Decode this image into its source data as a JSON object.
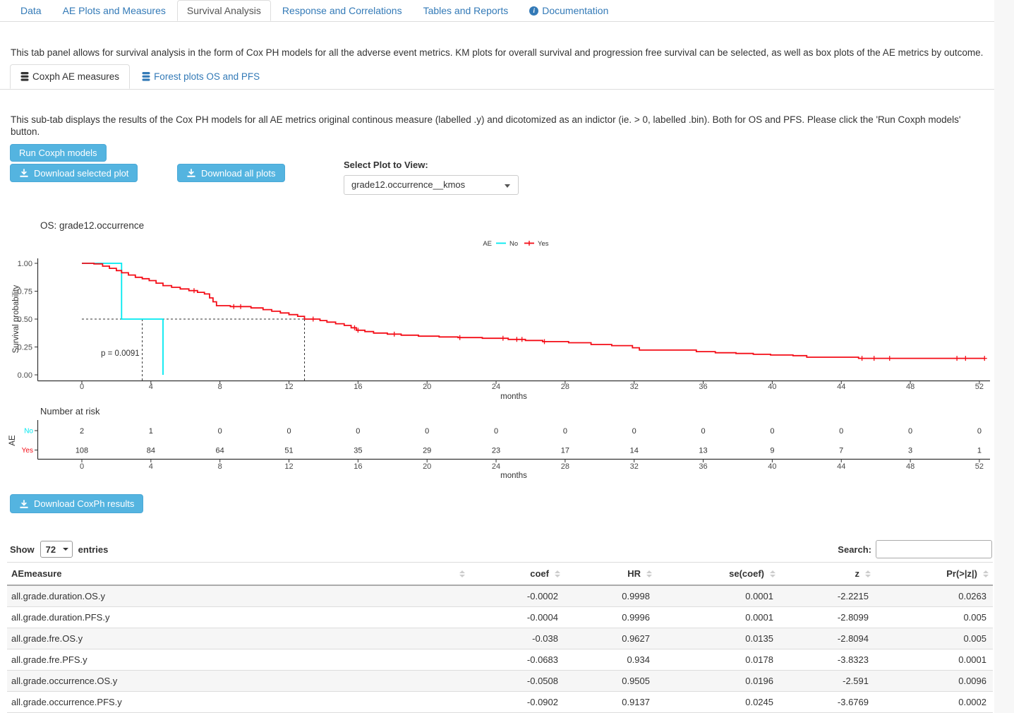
{
  "nav_tabs": {
    "items": [
      {
        "label": "Data",
        "active": false
      },
      {
        "label": "AE Plots and Measures",
        "active": false
      },
      {
        "label": "Survival Analysis",
        "active": true
      },
      {
        "label": "Response and Correlations",
        "active": false
      },
      {
        "label": "Tables and Reports",
        "active": false
      },
      {
        "label": "Documentation",
        "active": false,
        "icon": "info-circle-icon"
      }
    ]
  },
  "intro_text": "This tab panel allows for survival analysis in the form of Cox PH models for all the adverse event metrics. KM plots for overall survival and progression free survival can be selected, as well as box plots of the AE metrics by outcome.",
  "sub_tabs": {
    "items": [
      {
        "label": "Coxph AE measures",
        "active": true,
        "icon": "database-icon"
      },
      {
        "label": "Forest plots OS and PFS",
        "active": false,
        "icon": "database-icon"
      }
    ]
  },
  "subtab_text": "This sub-tab displays the results of the Cox PH models for all AE metrics original continous measure (labelled .y) and dicotomized as an indictor (ie. > 0, labelled .bin). Both for OS and PFS. Please click the 'Run Coxph models' button.",
  "buttons": {
    "run": "Run Coxph models",
    "download_selected": "Download selected plot",
    "download_all": "Download all plots",
    "download_results": "Download CoxPh results",
    "accent_color": "#54b4e0"
  },
  "plot_select": {
    "label": "Select Plot to View:",
    "value": "grade12.occurrence__kmos"
  },
  "chart_data": {
    "type": "line",
    "subtype": "kaplan-meier-step",
    "title": "OS:  grade12.occurrence",
    "xlabel": "months",
    "ylabel": "Survival probability",
    "xlim": [
      0,
      52
    ],
    "ylim": [
      0,
      1
    ],
    "xticks": [
      0,
      4,
      8,
      12,
      16,
      20,
      24,
      28,
      32,
      36,
      40,
      44,
      48,
      52
    ],
    "ytick_labels": [
      "0.00",
      "0.25",
      "0.50",
      "0.75",
      "1.00"
    ],
    "yticks": [
      0,
      0.25,
      0.5,
      0.75,
      1
    ],
    "grid": false,
    "legend": {
      "title": "AE",
      "position": "top-center",
      "entries": [
        {
          "label": "No",
          "color": "#00E9F0"
        },
        {
          "label": "Yes",
          "color": "#F40D17"
        }
      ]
    },
    "annotation": "p = 0.0091",
    "median_guides": {
      "survival_level": 0.5,
      "h_line_to_month": 12.9,
      "vertical_months": [
        3.5,
        12.9
      ]
    },
    "series": [
      {
        "name": "No",
        "color": "#00E9F0",
        "points": [
          [
            0,
            1.0
          ],
          [
            2.3,
            1.0
          ],
          [
            2.3,
            0.5
          ],
          [
            4.7,
            0.5
          ],
          [
            4.7,
            0.0
          ]
        ],
        "censors": []
      },
      {
        "name": "Yes",
        "color": "#F40D17",
        "points": [
          [
            0,
            1.0
          ],
          [
            0.7,
            0.995
          ],
          [
            1.2,
            0.975
          ],
          [
            1.6,
            0.955
          ],
          [
            2.0,
            0.935
          ],
          [
            2.3,
            0.915
          ],
          [
            2.7,
            0.895
          ],
          [
            3.1,
            0.875
          ],
          [
            3.5,
            0.862
          ],
          [
            3.9,
            0.845
          ],
          [
            4.3,
            0.822
          ],
          [
            4.7,
            0.8
          ],
          [
            5.2,
            0.785
          ],
          [
            5.7,
            0.77
          ],
          [
            6.2,
            0.755
          ],
          [
            6.7,
            0.74
          ],
          [
            7.1,
            0.725
          ],
          [
            7.4,
            0.69
          ],
          [
            7.6,
            0.655
          ],
          [
            7.8,
            0.62
          ],
          [
            8.6,
            0.612
          ],
          [
            9.8,
            0.6
          ],
          [
            10.5,
            0.585
          ],
          [
            11.0,
            0.57
          ],
          [
            11.5,
            0.555
          ],
          [
            12.0,
            0.54
          ],
          [
            12.5,
            0.525
          ],
          [
            12.9,
            0.5
          ],
          [
            13.8,
            0.487
          ],
          [
            14.2,
            0.473
          ],
          [
            14.7,
            0.458
          ],
          [
            15.2,
            0.443
          ],
          [
            15.6,
            0.422
          ],
          [
            15.9,
            0.4
          ],
          [
            16.4,
            0.388
          ],
          [
            16.9,
            0.375
          ],
          [
            17.7,
            0.365
          ],
          [
            18.5,
            0.356
          ],
          [
            19.5,
            0.347
          ],
          [
            20.7,
            0.34
          ],
          [
            21.8,
            0.334
          ],
          [
            23.2,
            0.328
          ],
          [
            24.7,
            0.318
          ],
          [
            25.7,
            0.308
          ],
          [
            26.7,
            0.298
          ],
          [
            28.2,
            0.288
          ],
          [
            29.5,
            0.272
          ],
          [
            30.7,
            0.262
          ],
          [
            31.9,
            0.243
          ],
          [
            32.3,
            0.222
          ],
          [
            35.6,
            0.208
          ],
          [
            36.7,
            0.198
          ],
          [
            37.9,
            0.192
          ],
          [
            38.9,
            0.184
          ],
          [
            39.9,
            0.178
          ],
          [
            41.2,
            0.172
          ],
          [
            42.0,
            0.158
          ],
          [
            45.0,
            0.148
          ],
          [
            52.3,
            0.148
          ]
        ],
        "censors": [
          6.5,
          8.8,
          9.2,
          13.4,
          15.8,
          16.0,
          18.1,
          21.9,
          24.4,
          25.2,
          25.5,
          26.8,
          45.2,
          45.9,
          46.8,
          50.7,
          51.2,
          52.3
        ]
      }
    ],
    "number_at_risk": {
      "title": "Number at risk",
      "axis_label": "AE",
      "xlabel": "months",
      "times": [
        0,
        4,
        8,
        12,
        16,
        20,
        24,
        28,
        32,
        36,
        40,
        44,
        48,
        52
      ],
      "rows": [
        {
          "label": "No",
          "color": "#00E9F0",
          "counts": [
            2,
            1,
            0,
            0,
            0,
            0,
            0,
            0,
            0,
            0,
            0,
            0,
            0,
            0
          ]
        },
        {
          "label": "Yes",
          "color": "#F40D17",
          "counts": [
            108,
            84,
            64,
            51,
            35,
            29,
            23,
            17,
            14,
            13,
            9,
            7,
            3,
            1
          ]
        }
      ]
    }
  },
  "table": {
    "show_label": "Show",
    "page_length": "72",
    "entries_label": "entries",
    "search_label": "Search:",
    "search_value": "",
    "columns": [
      "AEmeasure",
      "coef",
      "HR",
      "se(coef)",
      "z",
      "Pr(>|z|)"
    ],
    "rows": [
      [
        "all.grade.duration.OS.y",
        "-0.0002",
        "0.9998",
        "0.0001",
        "-2.2215",
        "0.0263"
      ],
      [
        "all.grade.duration.PFS.y",
        "-0.0004",
        "0.9996",
        "0.0001",
        "-2.8099",
        "0.005"
      ],
      [
        "all.grade.fre.OS.y",
        "-0.038",
        "0.9627",
        "0.0135",
        "-2.8094",
        "0.005"
      ],
      [
        "all.grade.fre.PFS.y",
        "-0.0683",
        "0.934",
        "0.0178",
        "-3.8323",
        "0.0001"
      ],
      [
        "all.grade.occurrence.OS.y",
        "-0.0508",
        "0.9505",
        "0.0196",
        "-2.591",
        "0.0096"
      ],
      [
        "all.grade.occurrence.PFS.y",
        "-0.0902",
        "0.9137",
        "0.0245",
        "-3.6769",
        "0.0002"
      ]
    ]
  }
}
